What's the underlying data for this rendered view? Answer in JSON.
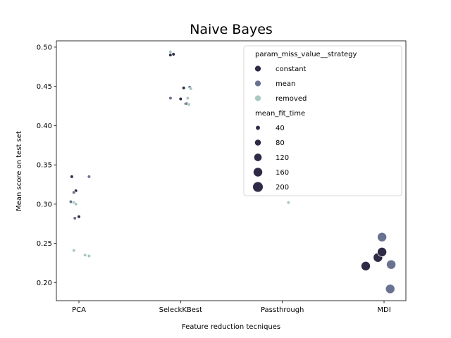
{
  "chart_data": {
    "type": "scatter",
    "title": "Naive Bayes",
    "xlabel": "Feature reduction tecniques",
    "ylabel": "Mean score on test set",
    "categories": [
      "PCA",
      "SeleckKBest",
      "Passthrough",
      "MDI"
    ],
    "ylim": [
      0.177,
      0.508
    ],
    "yticks": [
      "0.20",
      "0.25",
      "0.30",
      "0.35",
      "0.40",
      "0.45",
      "0.50"
    ],
    "grid": false,
    "legend": {
      "placement": "top-right",
      "hue_title": "param_miss_value__strategy",
      "size_title": "mean_fit_time",
      "size_entries": [
        "40",
        "80",
        "120",
        "160",
        "200"
      ]
    },
    "series": [
      {
        "name": "constant",
        "color": "#2d2b46",
        "points": [
          {
            "x": "PCA",
            "jitter": -0.07,
            "y": 0.335,
            "fit_time": 20
          },
          {
            "x": "PCA",
            "jitter": -0.03,
            "y": 0.317,
            "fit_time": 20
          },
          {
            "x": "PCA",
            "jitter": 0.0,
            "y": 0.284,
            "fit_time": 20
          },
          {
            "x": "SeleckKBest",
            "jitter": -0.1,
            "y": 0.49,
            "fit_time": 20
          },
          {
            "x": "SeleckKBest",
            "jitter": -0.07,
            "y": 0.491,
            "fit_time": 20
          },
          {
            "x": "SeleckKBest",
            "jitter": 0.03,
            "y": 0.448,
            "fit_time": 20
          },
          {
            "x": "SeleckKBest",
            "jitter": 0.0,
            "y": 0.434,
            "fit_time": 20
          },
          {
            "x": "SeleckKBest",
            "jitter": 0.05,
            "y": 0.428,
            "fit_time": 20
          },
          {
            "x": "MDI",
            "jitter": -0.18,
            "y": 0.221,
            "fit_time": 160
          },
          {
            "x": "MDI",
            "jitter": -0.06,
            "y": 0.232,
            "fit_time": 160
          },
          {
            "x": "MDI",
            "jitter": -0.02,
            "y": 0.239,
            "fit_time": 160
          }
        ]
      },
      {
        "name": "mean",
        "color": "#6a7291",
        "points": [
          {
            "x": "PCA",
            "jitter": 0.1,
            "y": 0.335,
            "fit_time": 20
          },
          {
            "x": "PCA",
            "jitter": -0.05,
            "y": 0.315,
            "fit_time": 20
          },
          {
            "x": "PCA",
            "jitter": -0.08,
            "y": 0.303,
            "fit_time": 20
          },
          {
            "x": "PCA",
            "jitter": -0.04,
            "y": 0.282,
            "fit_time": 20
          },
          {
            "x": "SeleckKBest",
            "jitter": -0.1,
            "y": 0.435,
            "fit_time": 20
          },
          {
            "x": "SeleckKBest",
            "jitter": 0.09,
            "y": 0.449,
            "fit_time": 20
          },
          {
            "x": "SeleckKBest",
            "jitter": 0.06,
            "y": 0.428,
            "fit_time": 20
          },
          {
            "x": "MDI",
            "jitter": -0.02,
            "y": 0.258,
            "fit_time": 160
          },
          {
            "x": "MDI",
            "jitter": 0.07,
            "y": 0.223,
            "fit_time": 160
          },
          {
            "x": "MDI",
            "jitter": 0.06,
            "y": 0.192,
            "fit_time": 160
          }
        ]
      },
      {
        "name": "removed",
        "color": "#a9c8c2",
        "points": [
          {
            "x": "PCA",
            "jitter": -0.05,
            "y": 0.302,
            "fit_time": 20
          },
          {
            "x": "PCA",
            "jitter": -0.03,
            "y": 0.3,
            "fit_time": 20
          },
          {
            "x": "PCA",
            "jitter": -0.05,
            "y": 0.241,
            "fit_time": 20
          },
          {
            "x": "PCA",
            "jitter": 0.06,
            "y": 0.235,
            "fit_time": 20
          },
          {
            "x": "PCA",
            "jitter": 0.1,
            "y": 0.234,
            "fit_time": 20
          },
          {
            "x": "SeleckKBest",
            "jitter": -0.1,
            "y": 0.494,
            "fit_time": 20
          },
          {
            "x": "SeleckKBest",
            "jitter": 0.1,
            "y": 0.447,
            "fit_time": 20
          },
          {
            "x": "SeleckKBest",
            "jitter": 0.07,
            "y": 0.435,
            "fit_time": 20
          },
          {
            "x": "SeleckKBest",
            "jitter": 0.08,
            "y": 0.427,
            "fit_time": 20
          },
          {
            "x": "Passthrough",
            "jitter": -0.12,
            "y": 0.331,
            "fit_time": 5
          },
          {
            "x": "Passthrough",
            "jitter": 0.03,
            "y": 0.331,
            "fit_time": 5
          },
          {
            "x": "Passthrough",
            "jitter": 0.06,
            "y": 0.302,
            "fit_time": 20
          }
        ]
      }
    ]
  }
}
